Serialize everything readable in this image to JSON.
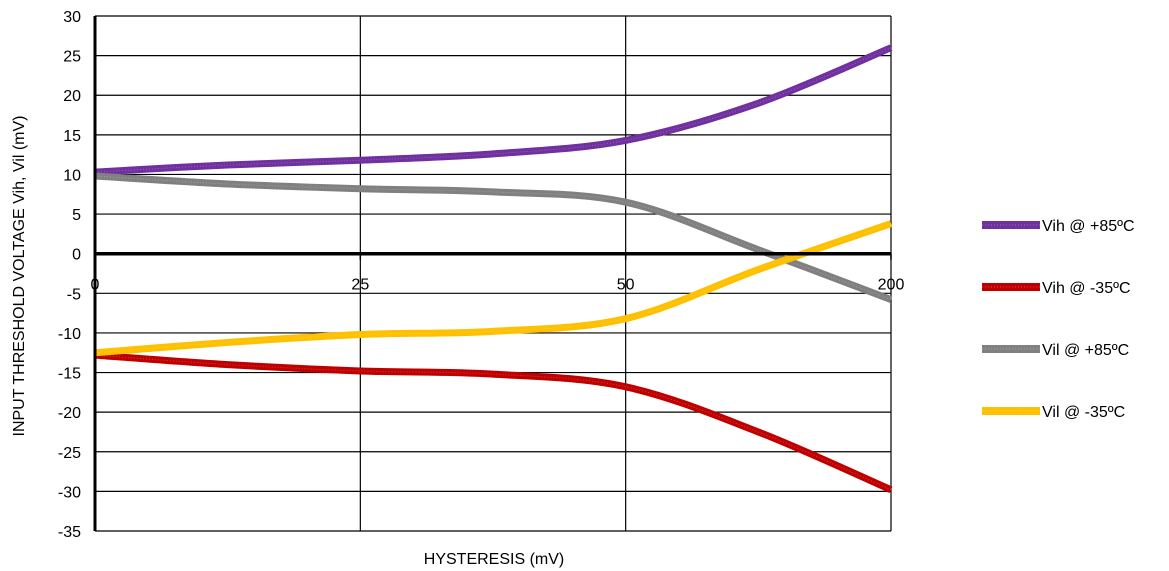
{
  "chart_data": {
    "type": "line",
    "xlabel": "HYSTERESIS (mV)",
    "ylabel": "INPUT THRESHOLD VOLTAGE Vih, Vil (mV)",
    "categories": [
      "0",
      "25",
      "50",
      "200"
    ],
    "ylim": [
      -35,
      30
    ],
    "yticks": [
      30,
      25,
      20,
      15,
      10,
      5,
      0,
      -5,
      -10,
      -15,
      -20,
      -25,
      -30,
      -35
    ],
    "grid": true,
    "legend_position": "right",
    "series": [
      {
        "name": "Vih @ +85ºC",
        "color": "#7030a0",
        "x": [
          0,
          0.5,
          1,
          1.5,
          2,
          2.5,
          3
        ],
        "values": [
          10.3,
          11.2,
          11.8,
          12.6,
          14.3,
          19.0,
          26.0
        ]
      },
      {
        "name": "Vih @ -35ºC",
        "color": "#c00000",
        "x": [
          0,
          0.5,
          1,
          1.5,
          2,
          2.5,
          3
        ],
        "values": [
          -12.8,
          -14.0,
          -14.8,
          -15.2,
          -16.8,
          -22.5,
          -29.8
        ]
      },
      {
        "name": "Vil @ +85ºC",
        "color": "#808080",
        "x": [
          0,
          0.5,
          1,
          1.5,
          2,
          2.5,
          3
        ],
        "values": [
          9.8,
          8.8,
          8.2,
          7.8,
          6.5,
          0.5,
          -5.8
        ]
      },
      {
        "name": "Vil @ -35ºC",
        "color": "#ffc000",
        "x": [
          0,
          0.5,
          1,
          1.5,
          2,
          2.5,
          3
        ],
        "values": [
          -12.5,
          -11.2,
          -10.2,
          -9.8,
          -8.2,
          -2.0,
          3.8
        ]
      }
    ]
  }
}
